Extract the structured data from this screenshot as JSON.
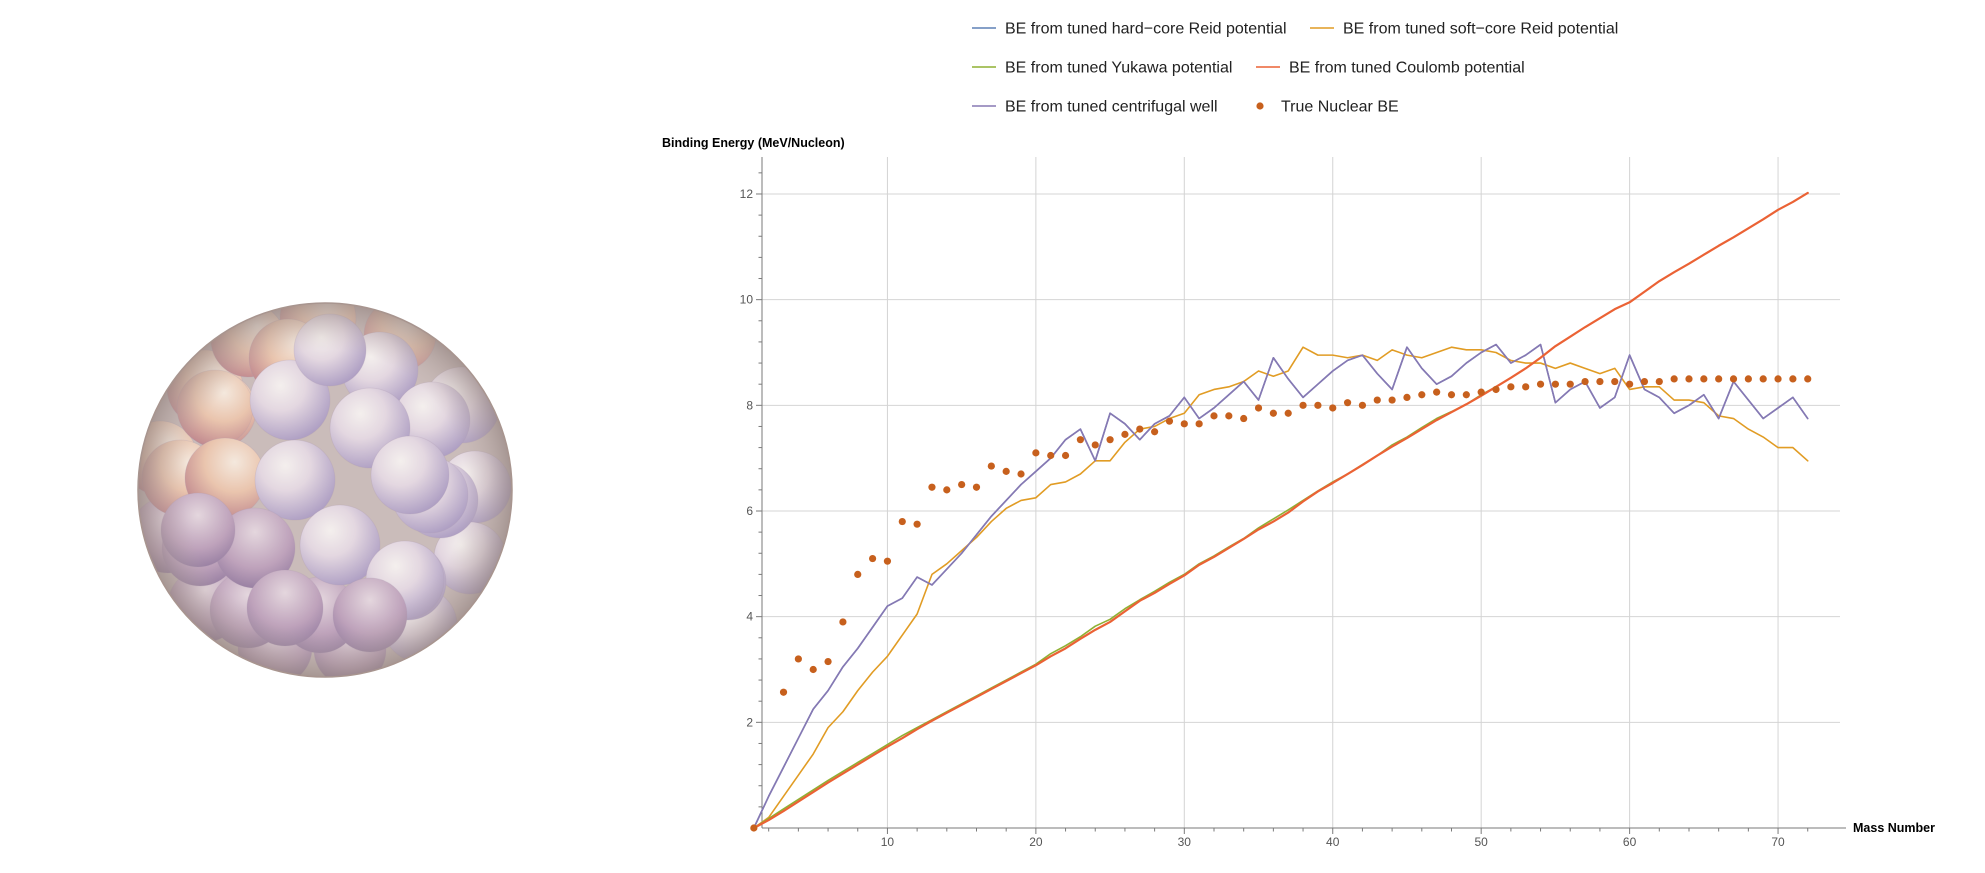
{
  "chart_data": {
    "type": "line",
    "title": "",
    "xlabel": "Mass Number",
    "ylabel": "Binding Energy (MeV/Nucleon)",
    "xlim": [
      0,
      73.5
    ],
    "ylim": [
      0,
      12.7
    ],
    "x_ticks": [
      10,
      20,
      30,
      40,
      50,
      60,
      70
    ],
    "y_ticks": [
      2,
      4,
      6,
      8,
      10,
      12
    ],
    "x_tick_labels": [
      "10",
      "20",
      "30",
      "40",
      "50",
      "60",
      "70"
    ],
    "y_tick_labels": [
      "2",
      "4",
      "6",
      "8",
      "10",
      "12"
    ],
    "grid": true,
    "legend_position": "top",
    "x": [
      1,
      2,
      3,
      4,
      5,
      6,
      7,
      8,
      9,
      10,
      11,
      12,
      13,
      14,
      15,
      16,
      17,
      18,
      19,
      20,
      21,
      22,
      23,
      24,
      25,
      26,
      27,
      28,
      29,
      30,
      31,
      32,
      33,
      34,
      35,
      36,
      37,
      38,
      39,
      40,
      41,
      42,
      43,
      44,
      45,
      46,
      47,
      48,
      49,
      50,
      51,
      52,
      53,
      54,
      55,
      56,
      57,
      58,
      59,
      60,
      61,
      62,
      63,
      64,
      65,
      66,
      67,
      68,
      69,
      70,
      71,
      72
    ],
    "series": [
      {
        "name": "BE from tuned hard−core Reid potential",
        "color": "#5e81b5",
        "style": "line",
        "values": [
          0,
          0.6,
          1.15,
          1.7,
          2.25,
          2.6,
          3.05,
          3.4,
          3.8,
          4.2,
          4.35,
          4.75,
          4.6,
          4.9,
          5.2,
          5.55,
          5.9,
          6.2,
          6.5,
          6.75,
          7.0,
          7.35,
          7.55,
          6.95,
          7.85,
          7.65,
          7.35,
          7.65,
          7.8,
          8.15,
          7.75,
          7.95,
          8.2,
          8.45,
          8.1,
          8.9,
          8.5,
          8.15,
          8.4,
          8.65,
          8.85,
          8.95,
          8.6,
          8.3,
          9.1,
          8.7,
          8.4,
          8.55,
          8.8,
          9.0,
          9.15,
          8.8,
          8.95,
          9.15,
          8.05,
          8.3,
          8.45,
          7.95,
          8.15,
          8.95,
          8.3,
          8.15,
          7.85,
          8.0,
          8.2,
          7.75,
          8.45,
          8.1,
          7.75,
          7.95,
          8.15,
          7.75
        ]
      },
      {
        "name": "BE from tuned soft−core Reid potential",
        "color": "#e19c24",
        "style": "line",
        "values": [
          0,
          0.2,
          0.6,
          1.0,
          1.4,
          1.9,
          2.2,
          2.6,
          2.95,
          3.25,
          3.65,
          4.05,
          4.8,
          5.0,
          5.25,
          5.5,
          5.8,
          6.05,
          6.2,
          6.25,
          6.5,
          6.55,
          6.7,
          6.95,
          6.95,
          7.3,
          7.55,
          7.6,
          7.75,
          7.85,
          8.2,
          8.3,
          8.35,
          8.45,
          8.65,
          8.55,
          8.65,
          9.1,
          8.95,
          8.95,
          8.9,
          8.95,
          8.85,
          9.05,
          8.95,
          8.9,
          9.0,
          9.1,
          9.05,
          9.05,
          9.0,
          8.85,
          8.8,
          8.8,
          8.7,
          8.8,
          8.7,
          8.6,
          8.7,
          8.3,
          8.35,
          8.35,
          8.1,
          8.1,
          8.05,
          7.8,
          7.75,
          7.55,
          7.4,
          7.2,
          7.2,
          6.95
        ]
      },
      {
        "name": "BE from tuned Yukawa potential",
        "color": "#8fb032",
        "style": "line",
        "values": [
          0,
          0.18,
          0.36,
          0.54,
          0.72,
          0.9,
          1.07,
          1.24,
          1.41,
          1.58,
          1.75,
          1.9,
          2.05,
          2.2,
          2.35,
          2.5,
          2.65,
          2.8,
          2.95,
          3.1,
          3.3,
          3.45,
          3.62,
          3.82,
          3.95,
          4.15,
          4.32,
          4.48,
          4.65,
          4.8,
          5.0,
          5.15,
          5.32,
          5.48,
          5.68,
          5.85,
          6.02,
          6.2,
          6.38,
          6.55,
          6.7,
          6.88,
          7.05,
          7.25,
          7.4,
          7.58,
          7.75,
          7.88,
          8.02,
          8.2,
          8.35,
          8.52,
          8.7,
          8.9,
          9.12,
          9.3,
          9.48,
          9.65,
          9.82,
          9.95,
          10.15,
          10.35,
          10.52,
          10.68,
          10.85,
          11.02,
          11.18,
          11.35,
          11.52,
          11.7,
          11.85,
          12.02
        ]
      },
      {
        "name": "BE from tuned Coulomb potential",
        "color": "#eb6235",
        "style": "line",
        "values": [
          0,
          0.15,
          0.32,
          0.5,
          0.68,
          0.86,
          1.03,
          1.2,
          1.37,
          1.54,
          1.7,
          1.87,
          2.03,
          2.18,
          2.33,
          2.48,
          2.63,
          2.78,
          2.93,
          3.08,
          3.25,
          3.4,
          3.58,
          3.75,
          3.9,
          4.1,
          4.3,
          4.45,
          4.62,
          4.78,
          4.98,
          5.13,
          5.3,
          5.47,
          5.65,
          5.8,
          5.97,
          6.18,
          6.37,
          6.53,
          6.7,
          6.87,
          7.05,
          7.22,
          7.38,
          7.55,
          7.72,
          7.87,
          8.02,
          8.18,
          8.35,
          8.52,
          8.7,
          8.9,
          9.12,
          9.3,
          9.48,
          9.65,
          9.82,
          9.95,
          10.15,
          10.35,
          10.52,
          10.68,
          10.85,
          11.02,
          11.18,
          11.35,
          11.52,
          11.7,
          11.85,
          12.02
        ]
      },
      {
        "name": "BE from tuned centrifugal well",
        "color": "#8778b3",
        "style": "line",
        "values": [
          0,
          0.6,
          1.15,
          1.7,
          2.25,
          2.6,
          3.05,
          3.4,
          3.8,
          4.2,
          4.35,
          4.75,
          4.6,
          4.9,
          5.2,
          5.55,
          5.9,
          6.2,
          6.5,
          6.75,
          7.0,
          7.35,
          7.55,
          6.95,
          7.85,
          7.65,
          7.35,
          7.65,
          7.8,
          8.15,
          7.75,
          7.95,
          8.2,
          8.45,
          8.1,
          8.9,
          8.5,
          8.15,
          8.4,
          8.65,
          8.85,
          8.95,
          8.6,
          8.3,
          9.1,
          8.7,
          8.4,
          8.55,
          8.8,
          9.0,
          9.15,
          8.8,
          8.95,
          9.15,
          8.05,
          8.3,
          8.45,
          7.95,
          8.15,
          8.95,
          8.3,
          8.15,
          7.85,
          8.0,
          8.2,
          7.75,
          8.45,
          8.1,
          7.75,
          7.95,
          8.15,
          7.75
        ]
      },
      {
        "name": "True Nuclear BE",
        "color": "#c7601d",
        "style": "points",
        "values": [
          0,
          null,
          2.57,
          3.2,
          3.0,
          3.15,
          3.9,
          4.8,
          5.1,
          5.05,
          5.8,
          5.75,
          6.45,
          6.4,
          6.5,
          6.45,
          6.85,
          6.75,
          6.7,
          7.1,
          7.05,
          7.05,
          7.35,
          7.25,
          7.35,
          7.45,
          7.55,
          7.5,
          7.7,
          7.65,
          7.65,
          7.8,
          7.8,
          7.75,
          7.95,
          7.85,
          7.85,
          8.0,
          8.0,
          7.95,
          8.05,
          8.0,
          8.1,
          8.1,
          8.15,
          8.2,
          8.25,
          8.2,
          8.2,
          8.25,
          8.3,
          8.35,
          8.35,
          8.4,
          8.4,
          8.4,
          8.45,
          8.45,
          8.45,
          8.4,
          8.45,
          8.45,
          8.5,
          8.5,
          8.5,
          8.5,
          8.5,
          8.5,
          8.5,
          8.5,
          8.5,
          8.5
        ]
      }
    ]
  }
}
